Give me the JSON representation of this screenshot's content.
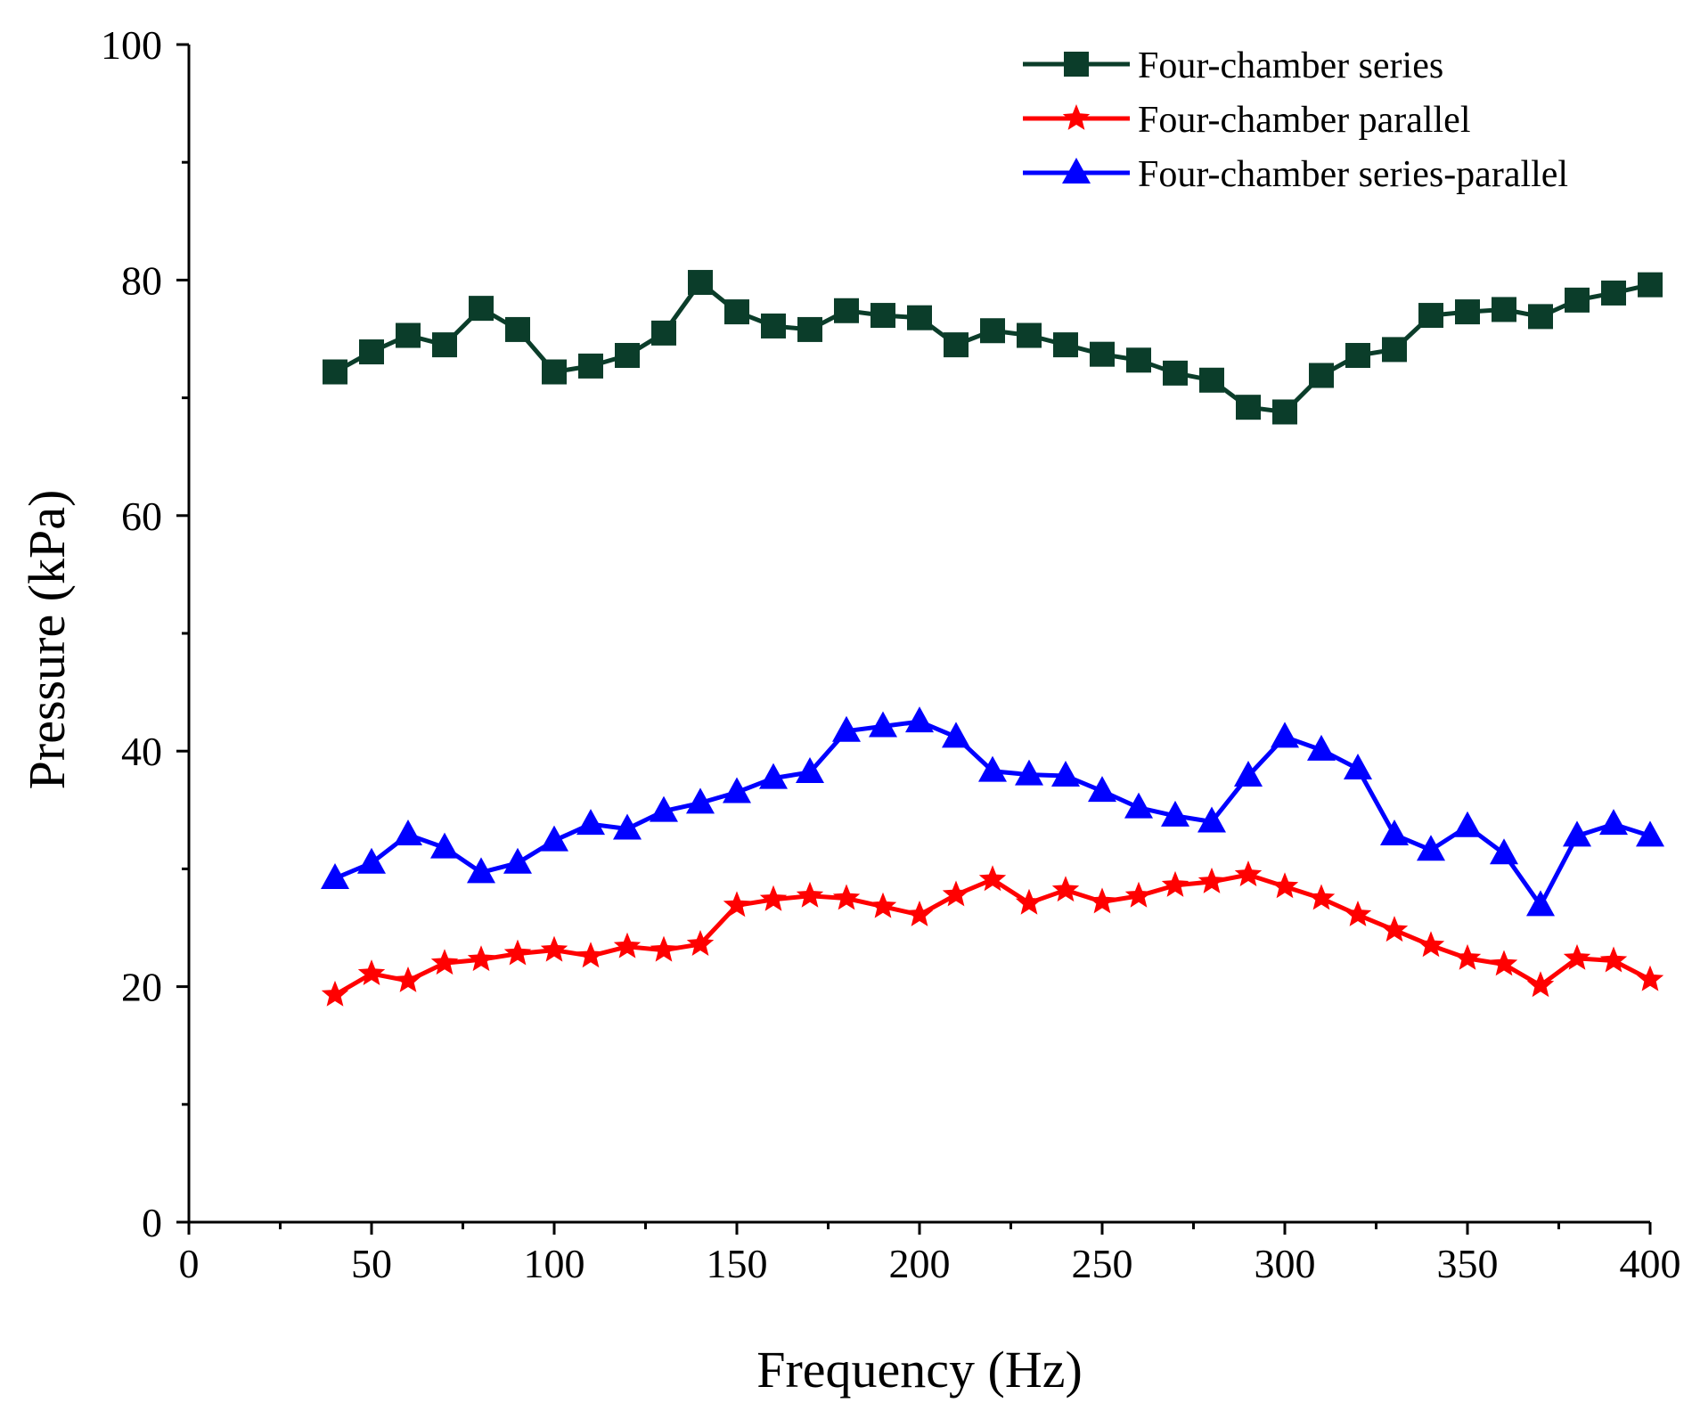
{
  "chart_data": {
    "type": "line",
    "title": "",
    "xlabel": "Frequency (Hz)",
    "ylabel": "Pressure (kPa)",
    "xlim": [
      0,
      400
    ],
    "ylim": [
      0,
      100
    ],
    "x_major_ticks": [
      0,
      50,
      100,
      150,
      200,
      250,
      300,
      350,
      400
    ],
    "x_tick_labels": [
      "0",
      "50",
      "100",
      "150",
      "200",
      "250",
      "300",
      "350",
      "400"
    ],
    "y_major_ticks": [
      0,
      20,
      40,
      60,
      80,
      100
    ],
    "y_tick_labels": [
      "0",
      "20",
      "40",
      "60",
      "80",
      "100"
    ],
    "grid": false,
    "legend_position": "top-right",
    "x": [
      40,
      50,
      60,
      70,
      80,
      90,
      100,
      110,
      120,
      130,
      140,
      150,
      160,
      170,
      180,
      190,
      200,
      210,
      220,
      230,
      240,
      250,
      260,
      270,
      280,
      290,
      300,
      310,
      320,
      330,
      340,
      350,
      360,
      370,
      380,
      390,
      400
    ],
    "series": [
      {
        "name": "Four-chamber series",
        "color": "#0b3d2a",
        "marker": "square",
        "values": [
          72.2,
          73.9,
          75.3,
          74.5,
          77.6,
          75.8,
          72.2,
          72.7,
          73.6,
          75.5,
          79.8,
          77.3,
          76.1,
          75.8,
          77.4,
          77.0,
          76.8,
          74.5,
          75.7,
          75.3,
          74.5,
          73.7,
          73.2,
          72.1,
          71.5,
          69.2,
          68.8,
          71.9,
          73.6,
          74.1,
          77.0,
          77.3,
          77.5,
          76.9,
          78.3,
          78.9,
          79.6
        ]
      },
      {
        "name": "Four-chamber parallel",
        "color": "#ff0000",
        "marker": "star",
        "values": [
          19.3,
          21.1,
          20.5,
          22.0,
          22.3,
          22.8,
          23.1,
          22.6,
          23.4,
          23.1,
          23.6,
          26.9,
          27.4,
          27.7,
          27.5,
          26.8,
          26.1,
          27.8,
          29.1,
          27.1,
          28.2,
          27.2,
          27.7,
          28.6,
          28.9,
          29.5,
          28.5,
          27.5,
          26.1,
          24.8,
          23.5,
          22.4,
          21.9,
          20.1,
          22.4,
          22.2,
          20.6
        ]
      },
      {
        "name": "Four-chamber series-parallel",
        "color": "#0000ff",
        "marker": "triangle",
        "values": [
          29.2,
          30.5,
          32.9,
          31.8,
          29.7,
          30.5,
          32.4,
          33.8,
          33.4,
          34.9,
          35.6,
          36.5,
          37.7,
          38.2,
          41.7,
          42.1,
          42.5,
          41.2,
          38.3,
          38.0,
          37.9,
          36.6,
          35.2,
          34.5,
          34.0,
          37.9,
          41.2,
          40.1,
          38.5,
          32.9,
          31.6,
          33.6,
          31.3,
          26.9,
          32.8,
          33.8,
          32.8
        ]
      }
    ]
  }
}
